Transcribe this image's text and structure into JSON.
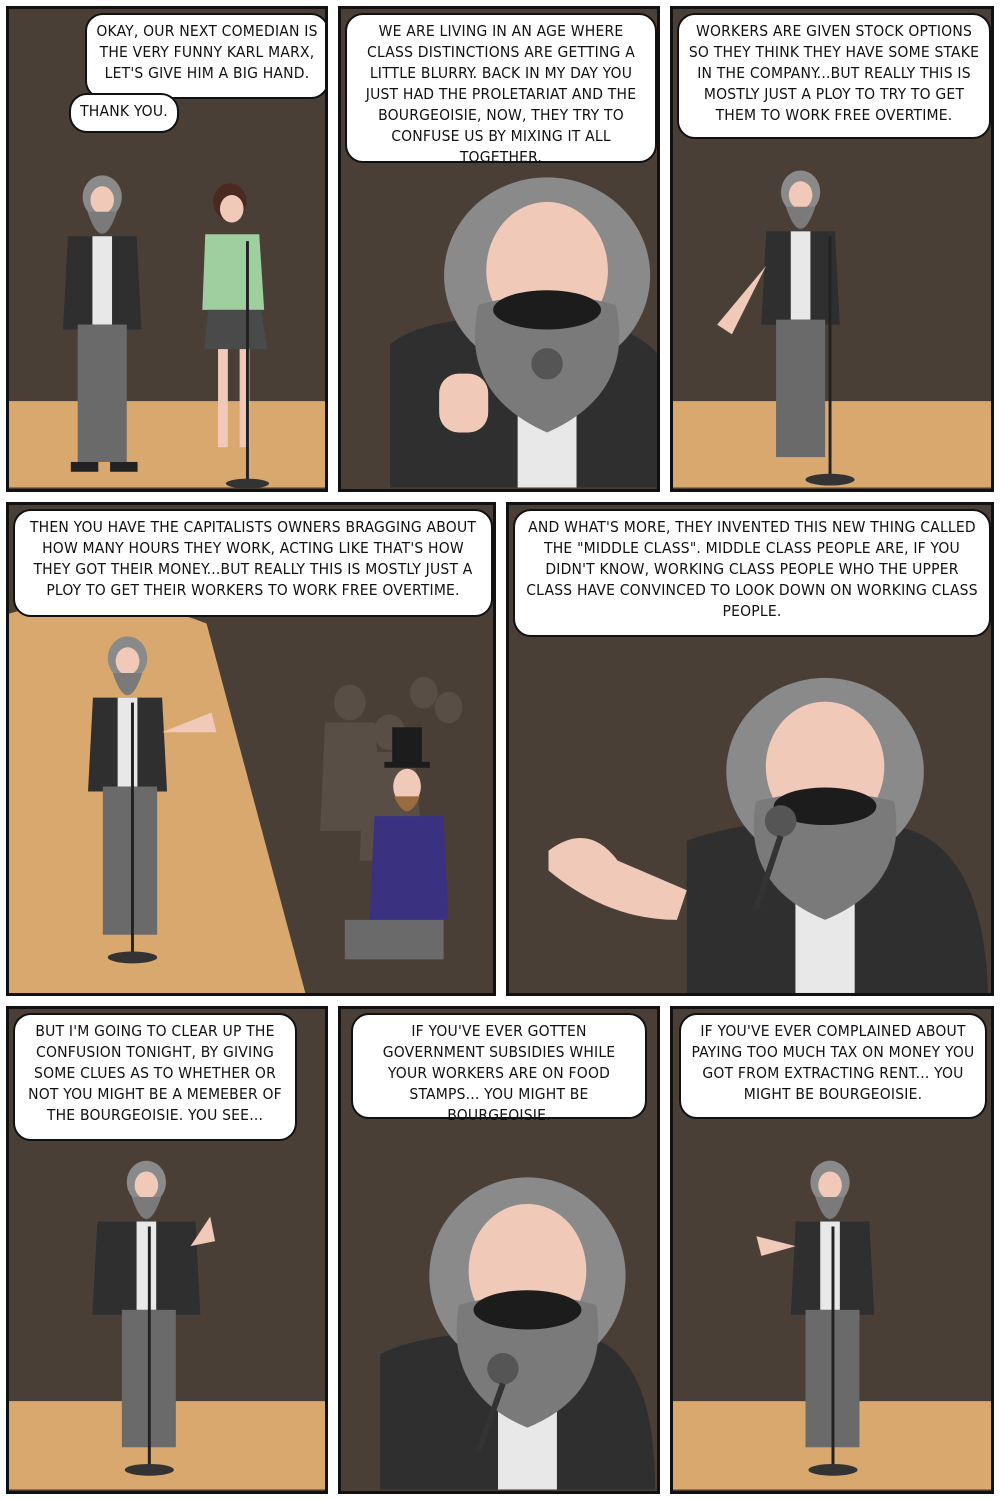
{
  "panels": [
    {
      "bubbles": [
        {
          "text": "Okay, our next comedian is the very funny Karl Marx, let's give him a big hand."
        },
        {
          "text": "Thank you."
        }
      ]
    },
    {
      "bubbles": [
        {
          "text": "We are living in an age where class distinctions are getting a little blurry. Back in my day you just had the proletariat and the bourgeoisie, Now, they try to confuse us by mixing it all together."
        }
      ]
    },
    {
      "bubbles": [
        {
          "text": "Workers are given stock options so they think they have some stake in the company...but really this is mostly just a ploy to try to get them to work free overtime."
        }
      ]
    },
    {
      "bubbles": [
        {
          "text": "Then you have the capitalists owners bragging about how many hours they work, acting like that's how they got their money...but really this is mostly just a ploy to get their workers to work free overtime."
        }
      ]
    },
    {
      "bubbles": [
        {
          "text": "And what's more, they invented this new thing called the \"middle class\". Middle class people are, if you didn't know, working class people who the upper class have convinced to look down on working class people."
        }
      ]
    },
    {
      "bubbles": [
        {
          "text": "But I'm going to clear up the confusion tonight, by giving some clues as to whether or not you might be a memeber of the bourgeoisie. You see..."
        }
      ]
    },
    {
      "bubbles": [
        {
          "text": "If you've ever gotten government subsidies while your workers are on food stamps... you might be bourgeoisie."
        }
      ]
    },
    {
      "bubbles": [
        {
          "text": "If you've ever complained about paying too much tax on money you got from extracting rent... you might be bourgeoisie."
        }
      ]
    }
  ],
  "colors": {
    "wall": "#4a3f36",
    "stage": "#d8a86e",
    "jacket": "#2f2f2f",
    "hair": "#8a8a8a",
    "beard": "#1c1c1c",
    "skin": "#f1c9b8",
    "host_jacket": "#9fcf9f",
    "capitalist_coat": "#3a3280"
  }
}
